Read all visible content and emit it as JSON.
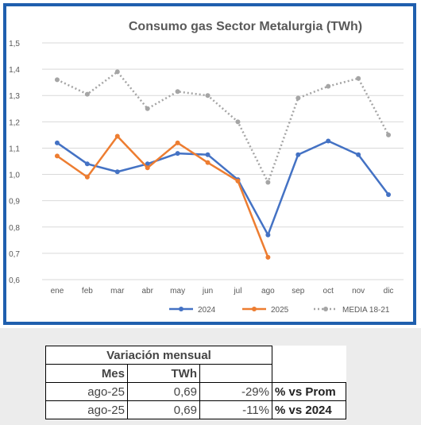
{
  "chart_data": {
    "type": "line",
    "title": "Consumo gas Sector Metalurgia (TWh)",
    "categories": [
      "ene",
      "feb",
      "mar",
      "abr",
      "may",
      "jun",
      "jul",
      "ago",
      "sep",
      "oct",
      "nov",
      "dic"
    ],
    "ylim": [
      0.6,
      1.5
    ],
    "yticks": [
      "0,6",
      "0,7",
      "0,8",
      "0,9",
      "1,0",
      "1,1",
      "1,2",
      "1,3",
      "1,4",
      "1,5"
    ],
    "grid": true,
    "legend_position": "bottom",
    "series": [
      {
        "name": "2024",
        "color": "#4472c4",
        "style": "solid",
        "values": [
          1.12,
          1.04,
          1.01,
          1.04,
          1.08,
          1.075,
          0.98,
          0.77,
          1.075,
          1.127,
          1.075,
          0.923
        ]
      },
      {
        "name": "2025",
        "color": "#ed7d31",
        "style": "solid",
        "values": [
          1.07,
          0.99,
          1.145,
          1.025,
          1.12,
          1.045,
          0.975,
          0.685,
          null,
          null,
          null,
          null
        ]
      },
      {
        "name": "MEDIA 18-21",
        "color": "#a5a5a5",
        "style": "dotted",
        "values": [
          1.36,
          1.305,
          1.39,
          1.25,
          1.315,
          1.3,
          1.2,
          0.97,
          1.29,
          1.335,
          1.365,
          1.15
        ]
      }
    ]
  },
  "table": {
    "title": "Variación mensual",
    "headers": {
      "mes": "Mes",
      "twh": "TWh"
    },
    "rows": [
      {
        "mes": "ago-25",
        "twh": "0,69",
        "pct": "-29%",
        "label": "% vs Prom"
      },
      {
        "mes": "ago-25",
        "twh": "0,69",
        "pct": "-11%",
        "label": "% vs 2024"
      }
    ]
  }
}
